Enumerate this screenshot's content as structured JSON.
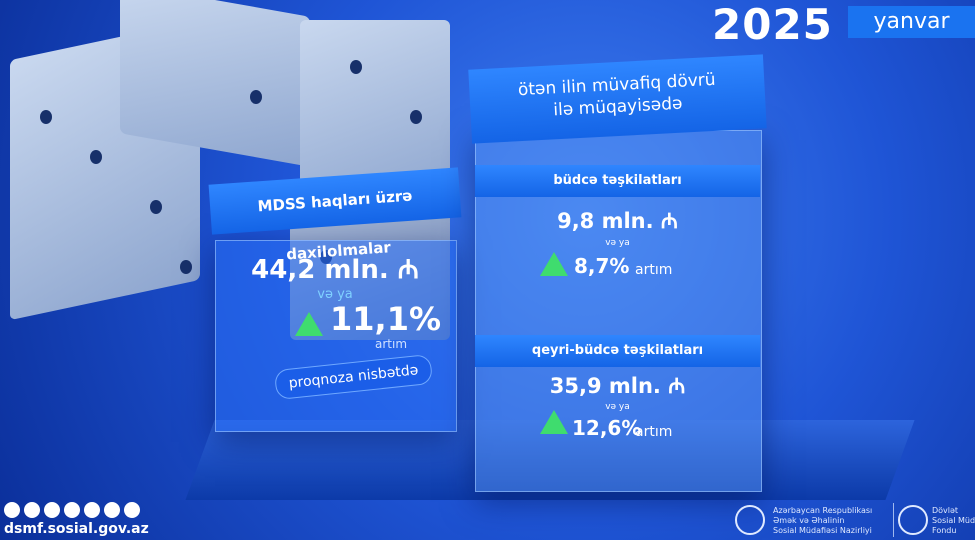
{
  "header": {
    "year": "2025",
    "month": "yanvar"
  },
  "left_card": {
    "title": "MDSS haqları üzrə daxilolmalar",
    "amount": "44,2 mln. ₼",
    "or": "və ya",
    "percent": "11,1%",
    "change": "artım",
    "basis": "proqnoza nisbətdə"
  },
  "right_card": {
    "title_lines": [
      "ötən ilin müvafiq dövrü",
      "ilə müqayisədə"
    ],
    "sections": [
      {
        "label": "büdcə təşkilatları",
        "amount": "9,8 mln. ₼",
        "or": "və ya",
        "percent": "8,7%",
        "change": "artım"
      },
      {
        "label": "qeyri-büdcə təşkilatları",
        "amount": "35,9 mln. ₼",
        "or": "və ya",
        "percent": "12,6%",
        "change": "artım"
      }
    ]
  },
  "footer": {
    "website": "dsmf.sosial.gov.az",
    "ministry_lines": [
      "Azərbaycan Respublikası",
      "Əmək və Əhalinin",
      "Sosial Müdafiəsi Nazirliyi"
    ],
    "fund_lines": [
      "Dövlət",
      "Sosial Müdafiə",
      "Fondu"
    ]
  }
}
